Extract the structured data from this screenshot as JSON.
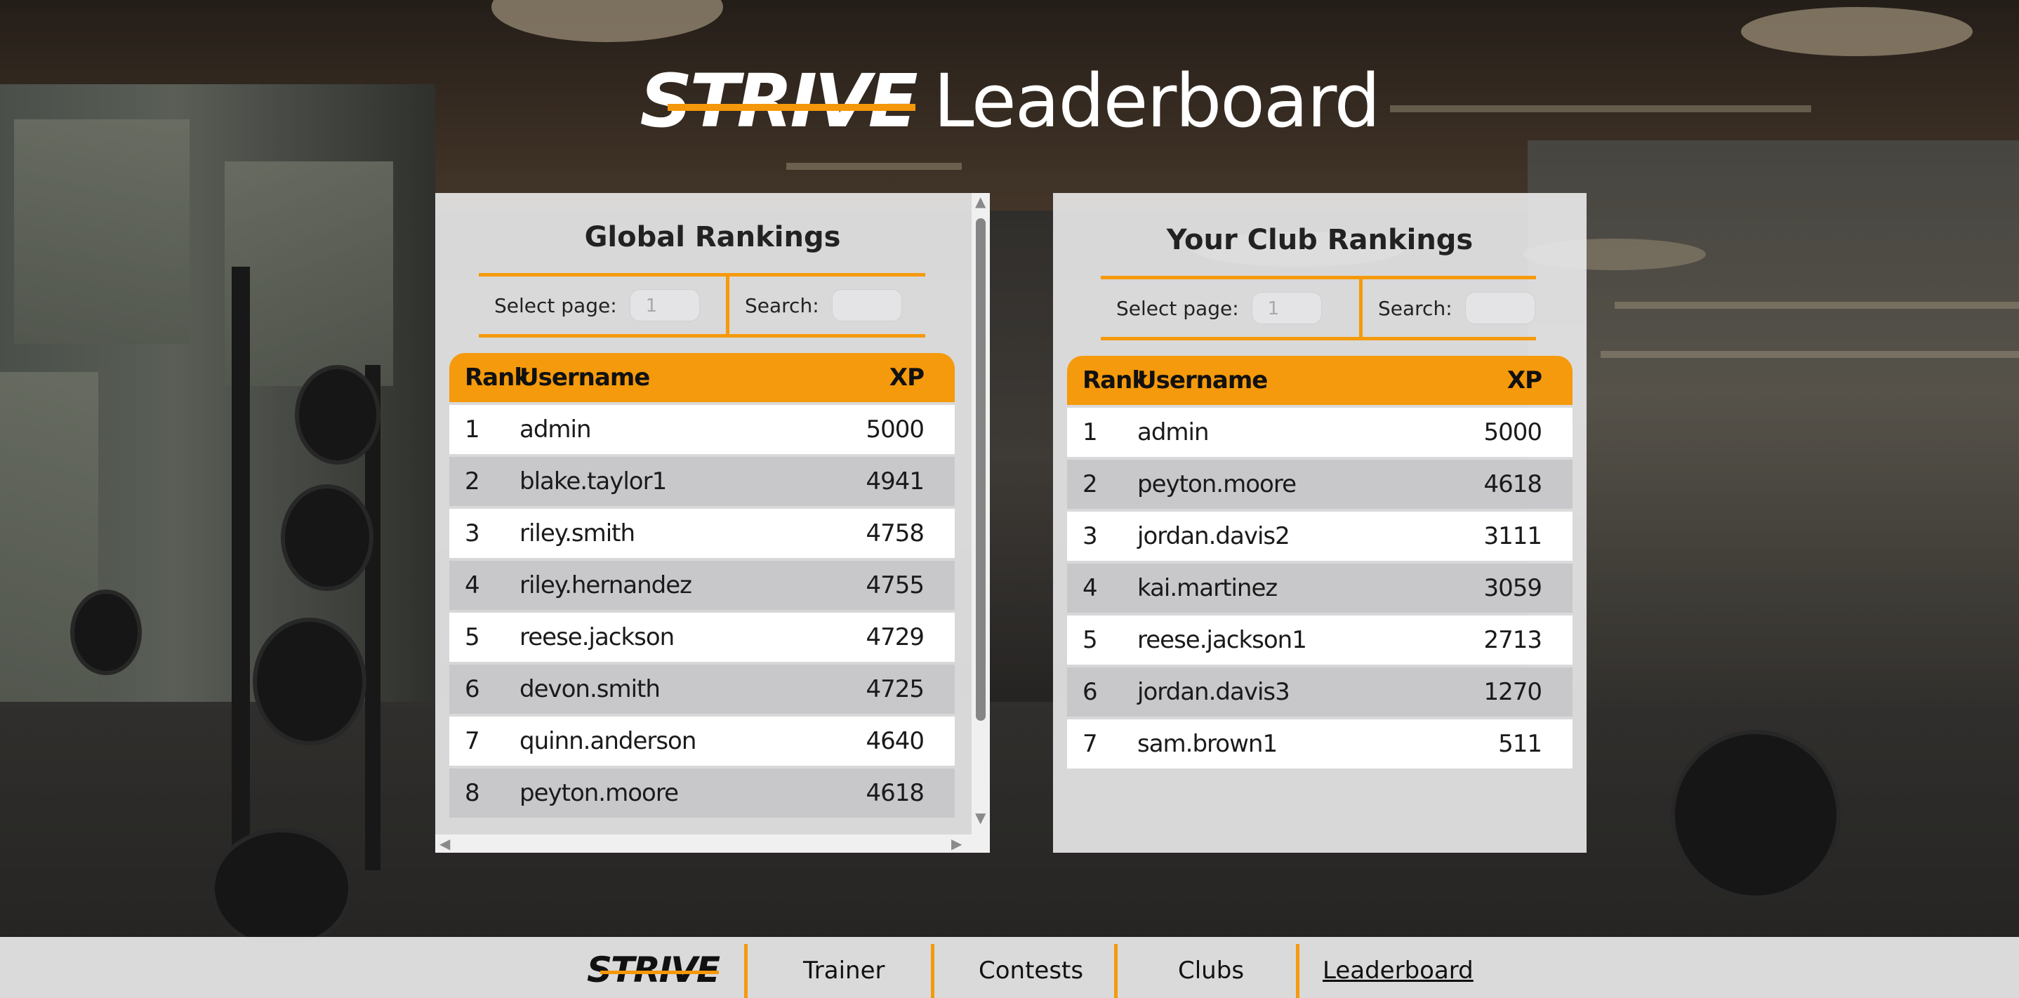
{
  "header": {
    "logo_text": "STRIVE",
    "title": "Leaderboard"
  },
  "global": {
    "title": "Global Rankings",
    "select_page_label": "Select page:",
    "page_placeholder": "1",
    "search_label": "Search:",
    "columns": {
      "rank": "Rank",
      "username": "Username",
      "xp": "XP"
    },
    "rows": [
      {
        "rank": "1",
        "username": "admin",
        "xp": "5000"
      },
      {
        "rank": "2",
        "username": "blake.taylor1",
        "xp": "4941"
      },
      {
        "rank": "3",
        "username": "riley.smith",
        "xp": "4758"
      },
      {
        "rank": "4",
        "username": "riley.hernandez",
        "xp": "4755"
      },
      {
        "rank": "5",
        "username": "reese.jackson",
        "xp": "4729"
      },
      {
        "rank": "6",
        "username": "devon.smith",
        "xp": "4725"
      },
      {
        "rank": "7",
        "username": "quinn.anderson",
        "xp": "4640"
      },
      {
        "rank": "8",
        "username": "peyton.moore",
        "xp": "4618"
      }
    ]
  },
  "club": {
    "title": "Your Club Rankings",
    "select_page_label": "Select page:",
    "page_placeholder": "1",
    "search_label": "Search:",
    "columns": {
      "rank": "Rank",
      "username": "Username",
      "xp": "XP"
    },
    "rows": [
      {
        "rank": "1",
        "username": "admin",
        "xp": "5000"
      },
      {
        "rank": "2",
        "username": "peyton.moore",
        "xp": "4618"
      },
      {
        "rank": "3",
        "username": "jordan.davis2",
        "xp": "3111"
      },
      {
        "rank": "4",
        "username": "kai.martinez",
        "xp": "3059"
      },
      {
        "rank": "5",
        "username": "reese.jackson1",
        "xp": "2713"
      },
      {
        "rank": "6",
        "username": "jordan.davis3",
        "xp": "1270"
      },
      {
        "rank": "7",
        "username": "sam.brown1",
        "xp": "511"
      }
    ]
  },
  "nav": {
    "logo_text": "STRIVE",
    "items": [
      {
        "label": "Trainer"
      },
      {
        "label": "Contests"
      },
      {
        "label": "Clubs"
      },
      {
        "label": "Leaderboard",
        "active": true
      }
    ]
  },
  "colors": {
    "accent": "#f59a0c",
    "row_alt": "#c8c8cb",
    "panel_bg": "#ebebec"
  },
  "icons": [
    "scroll-up-arrow-icon",
    "scroll-down-arrow-icon",
    "scroll-left-arrow-icon",
    "scroll-right-arrow-icon"
  ]
}
